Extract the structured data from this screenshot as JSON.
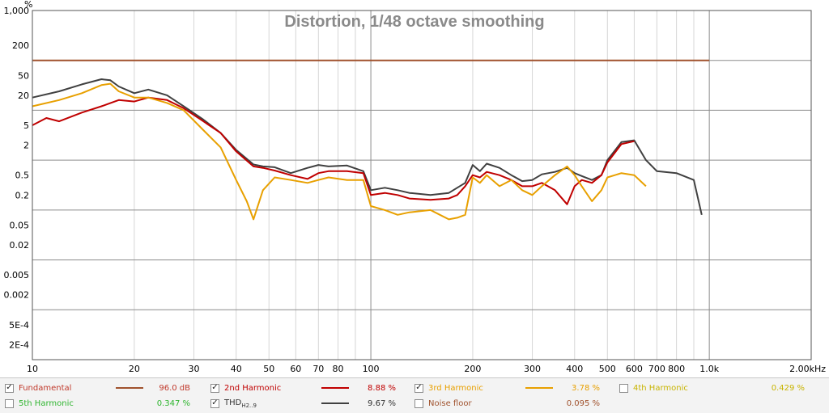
{
  "chart_data": {
    "type": "line",
    "title": "Distortion, 1/48 octave smoothing",
    "y_unit": "%",
    "x_unit": "kHz",
    "x_scale": "log",
    "y_scale": "log",
    "xlim": [
      10,
      2000
    ],
    "ylim": [
      0.0001,
      1000
    ],
    "grid": true,
    "x_tick_labels": [
      {
        "v": 10,
        "t": "10"
      },
      {
        "v": 20,
        "t": "20"
      },
      {
        "v": 30,
        "t": "30"
      },
      {
        "v": 40,
        "t": "40"
      },
      {
        "v": 50,
        "t": "50"
      },
      {
        "v": 60,
        "t": "60"
      },
      {
        "v": 70,
        "t": "70"
      },
      {
        "v": 80,
        "t": "80"
      },
      {
        "v": 100,
        "t": "100"
      },
      {
        "v": 200,
        "t": "200"
      },
      {
        "v": 300,
        "t": "300"
      },
      {
        "v": 400,
        "t": "400"
      },
      {
        "v": 500,
        "t": "500"
      },
      {
        "v": 600,
        "t": "600"
      },
      {
        "v": 700,
        "t": "700"
      },
      {
        "v": 800,
        "t": "800"
      },
      {
        "v": 1000,
        "t": "1.0k"
      },
      {
        "v": 2000,
        "t": "2.00kHz"
      }
    ],
    "y_tick_labels": [
      {
        "v": 1000,
        "t": "1,000"
      },
      {
        "v": 200,
        "t": "200"
      },
      {
        "v": 50,
        "t": "50"
      },
      {
        "v": 20,
        "t": "20"
      },
      {
        "v": 5,
        "t": "5"
      },
      {
        "v": 2,
        "t": "2"
      },
      {
        "v": 0.5,
        "t": "0.5"
      },
      {
        "v": 0.2,
        "t": "0.2"
      },
      {
        "v": 0.05,
        "t": "0.05"
      },
      {
        "v": 0.02,
        "t": "0.02"
      },
      {
        "v": 0.005,
        "t": "0.005"
      },
      {
        "v": 0.002,
        "t": "0.002"
      },
      {
        "v": 0.0005,
        "t": "5E-4"
      },
      {
        "v": 0.0002,
        "t": "2E-4"
      }
    ],
    "series": [
      {
        "name": "Fundamental",
        "color": "#a0522d",
        "x": [
          10,
          1000
        ],
        "y": [
          100,
          100
        ]
      },
      {
        "name": "THD",
        "color": "#404040",
        "x": [
          10,
          12,
          14,
          16,
          17,
          18,
          20,
          22,
          25,
          28,
          32,
          36,
          40,
          45,
          48,
          52,
          58,
          65,
          70,
          75,
          85,
          95,
          100,
          110,
          120,
          130,
          150,
          170,
          180,
          190,
          200,
          210,
          220,
          240,
          260,
          280,
          300,
          320,
          350,
          380,
          400,
          420,
          450,
          480,
          500,
          550,
          600,
          650,
          700,
          800,
          900,
          950
        ],
        "y": [
          18,
          24,
          33,
          42,
          40,
          30,
          22,
          26,
          20,
          12,
          6.5,
          3.5,
          1.6,
          0.82,
          0.75,
          0.72,
          0.55,
          0.7,
          0.8,
          0.75,
          0.78,
          0.6,
          0.25,
          0.28,
          0.25,
          0.22,
          0.2,
          0.22,
          0.28,
          0.35,
          0.8,
          0.6,
          0.85,
          0.7,
          0.5,
          0.38,
          0.4,
          0.52,
          0.58,
          0.7,
          0.55,
          0.48,
          0.4,
          0.5,
          1.0,
          2.3,
          2.5,
          1.0,
          0.6,
          0.55,
          0.4,
          0.08
        ]
      },
      {
        "name": "2nd Harmonic",
        "color": "#c00000",
        "x": [
          10,
          11,
          12,
          14,
          16,
          18,
          20,
          22,
          25,
          28,
          32,
          36,
          40,
          45,
          48,
          52,
          58,
          65,
          70,
          75,
          85,
          95,
          100,
          110,
          120,
          130,
          150,
          170,
          180,
          190,
          200,
          210,
          220,
          240,
          260,
          280,
          300,
          320,
          350,
          380,
          400,
          420,
          450,
          480,
          500,
          550,
          600
        ],
        "y": [
          5,
          7,
          6,
          9,
          12,
          16,
          15,
          18,
          16,
          11,
          6,
          3.5,
          1.5,
          0.75,
          0.7,
          0.62,
          0.5,
          0.42,
          0.55,
          0.6,
          0.6,
          0.55,
          0.2,
          0.22,
          0.2,
          0.17,
          0.16,
          0.17,
          0.2,
          0.3,
          0.5,
          0.45,
          0.58,
          0.5,
          0.4,
          0.3,
          0.3,
          0.35,
          0.25,
          0.13,
          0.3,
          0.4,
          0.35,
          0.5,
          0.9,
          2.1,
          2.4
        ]
      },
      {
        "name": "3rd Harmonic",
        "color": "#e8a000",
        "x": [
          10,
          12,
          14,
          16,
          17,
          18,
          20,
          22,
          25,
          28,
          32,
          36,
          40,
          43,
          45,
          48,
          52,
          58,
          65,
          70,
          75,
          85,
          95,
          100,
          110,
          120,
          130,
          150,
          160,
          170,
          180,
          190,
          200,
          210,
          220,
          240,
          260,
          280,
          300,
          320,
          350,
          380,
          400,
          420,
          450,
          480,
          500,
          550,
          600,
          650
        ],
        "y": [
          12,
          16,
          22,
          32,
          34,
          24,
          18,
          18,
          14,
          10,
          4,
          1.8,
          0.4,
          0.15,
          0.065,
          0.25,
          0.45,
          0.4,
          0.35,
          0.4,
          0.45,
          0.4,
          0.4,
          0.12,
          0.1,
          0.08,
          0.09,
          0.1,
          0.08,
          0.065,
          0.07,
          0.08,
          0.45,
          0.35,
          0.5,
          0.3,
          0.4,
          0.25,
          0.2,
          0.3,
          0.5,
          0.75,
          0.5,
          0.3,
          0.15,
          0.25,
          0.45,
          0.55,
          0.5,
          0.3
        ]
      }
    ]
  },
  "legend": [
    {
      "checked": true,
      "name": "Fundamental",
      "color": "#a0522d",
      "value": "96.0 dB",
      "text_color": "#c0392b",
      "swatch": true
    },
    {
      "checked": true,
      "name": "2nd Harmonic",
      "color": "#c00000",
      "value": "8.88 %",
      "text_color": "#c00000",
      "swatch": true
    },
    {
      "checked": true,
      "name": "3rd Harmonic",
      "color": "#e8a000",
      "value": "3.78 %",
      "text_color": "#e8a000",
      "swatch": true
    },
    {
      "checked": false,
      "name": "4th Harmonic",
      "color": "#d4c400",
      "value": "0.429 %",
      "text_color": "#c8b400",
      "swatch": false
    },
    {
      "checked": false,
      "name": "5th Harmonic",
      "color": "#2fb52f",
      "value": "0.347 %",
      "text_color": "#2fb52f",
      "swatch": false
    },
    {
      "checked": true,
      "name": "THD",
      "name_sub": "H2..9",
      "color": "#404040",
      "value": "9.67 %",
      "text_color": "#333333",
      "swatch": true
    },
    {
      "checked": false,
      "name": "Noise floor",
      "color": "#666666",
      "value": "0.095 %",
      "text_color": "#a0522d",
      "swatch": false
    }
  ]
}
